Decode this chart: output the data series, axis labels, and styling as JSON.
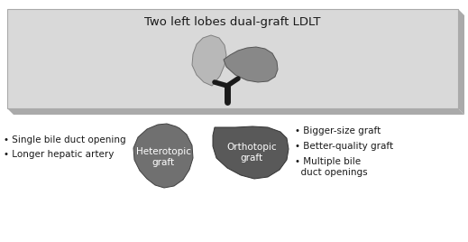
{
  "title": "Two left lobes dual-graft LDLT",
  "bg_box_color": "#d9d9d9",
  "bg_box_edge_color": "#aaaaaa",
  "box_shadow_color": "#aaaaaa",
  "left_lobe_color": "#b8b8b8",
  "right_lobe_color": "#888888",
  "stem_color": "#1a1a1a",
  "heterotopic_color": "#707070",
  "orthotopic_color": "#595959",
  "left_label": "Heterotopic\ngraft",
  "right_label": "Orthotopic\ngraft",
  "left_bullets": [
    "• Single bile duct opening",
    "• Longer hepatic artery"
  ],
  "right_bullets": [
    "• Bigger-size graft",
    "• Better-quality graft",
    "• Multiple bile\n  duct openings"
  ],
  "label_color": "#ffffff",
  "text_color": "#1a1a1a",
  "title_fontsize": 9.5,
  "label_fontsize": 7.5,
  "bullet_fontsize": 7.5
}
